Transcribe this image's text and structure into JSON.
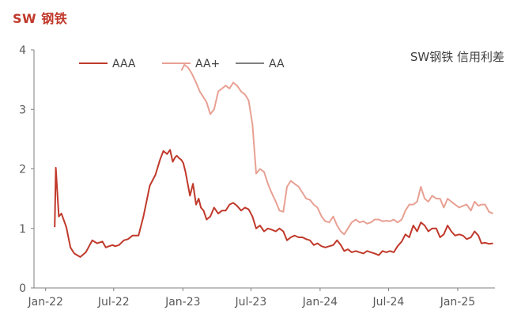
{
  "page": {
    "title": "SW 钢铁"
  },
  "chart_data": {
    "type": "line",
    "title": "SW 钢铁",
    "annotation": "SW钢铁 信用利差",
    "xlabel": "",
    "ylabel": "",
    "ylim": [
      0,
      4
    ],
    "yticks": [
      "0",
      "1",
      "2",
      "3",
      "4"
    ],
    "x_tick_labels": [
      "Jan-22",
      "Jul-22",
      "Jan-23",
      "Jul-23",
      "Jan-24",
      "Jul-24",
      "Jan-25"
    ],
    "x_tick_dates": [
      "2022-01-01",
      "2022-07-01",
      "2023-01-01",
      "2023-07-01",
      "2024-01-01",
      "2024-07-01",
      "2025-01-01"
    ],
    "x_range": [
      "2021-12-01",
      "2025-04-10"
    ],
    "grid": false,
    "legend_position": "top-left",
    "colors": {
      "AAA": "#c0392b",
      "AA+": "#e8a093",
      "AA": "#808080"
    },
    "series": [
      {
        "name": "AAA",
        "x": [
          "2022-01-25",
          "2022-01-28",
          "2022-02-05",
          "2022-02-12",
          "2022-02-25",
          "2022-03-08",
          "2022-03-18",
          "2022-04-03",
          "2022-04-18",
          "2022-05-05",
          "2022-05-18",
          "2022-06-01",
          "2022-06-10",
          "2022-06-18",
          "2022-06-28",
          "2022-07-05",
          "2022-07-15",
          "2022-07-28",
          "2022-08-08",
          "2022-08-20",
          "2022-09-05",
          "2022-09-18",
          "2022-10-05",
          "2022-10-20",
          "2022-11-01",
          "2022-11-10",
          "2022-11-20",
          "2022-11-28",
          "2022-12-05",
          "2022-12-12",
          "2022-12-16",
          "2022-12-22",
          "2022-12-28",
          "2023-01-02",
          "2023-01-08",
          "2023-01-20",
          "2023-01-28",
          "2023-02-05",
          "2023-02-12",
          "2023-02-18",
          "2023-02-25",
          "2023-03-05",
          "2023-03-15",
          "2023-03-25",
          "2023-04-05",
          "2023-04-15",
          "2023-04-25",
          "2023-05-05",
          "2023-05-15",
          "2023-05-25",
          "2023-06-05",
          "2023-06-15",
          "2023-06-25",
          "2023-07-05",
          "2023-07-15",
          "2023-07-25",
          "2023-08-05",
          "2023-08-15",
          "2023-08-25",
          "2023-09-05",
          "2023-09-15",
          "2023-09-25",
          "2023-10-05",
          "2023-10-15",
          "2023-10-25",
          "2023-11-05",
          "2023-11-15",
          "2023-11-25",
          "2023-12-05",
          "2023-12-15",
          "2023-12-25",
          "2024-01-05",
          "2024-01-15",
          "2024-01-25",
          "2024-02-05",
          "2024-02-15",
          "2024-02-25",
          "2024-03-05",
          "2024-03-15",
          "2024-03-25",
          "2024-04-05",
          "2024-04-15",
          "2024-04-25",
          "2024-05-05",
          "2024-05-15",
          "2024-05-25",
          "2024-06-05",
          "2024-06-15",
          "2024-06-25",
          "2024-07-05",
          "2024-07-15",
          "2024-07-25",
          "2024-08-05",
          "2024-08-15",
          "2024-08-25",
          "2024-09-05",
          "2024-09-15",
          "2024-09-25",
          "2024-10-05",
          "2024-10-15",
          "2024-10-25",
          "2024-11-05",
          "2024-11-15",
          "2024-11-25",
          "2024-12-05",
          "2024-12-15",
          "2024-12-25",
          "2025-01-05",
          "2025-01-15",
          "2025-01-25",
          "2025-02-05",
          "2025-02-15",
          "2025-02-25",
          "2025-03-05",
          "2025-03-15",
          "2025-03-25",
          "2025-04-05"
        ],
        "values": [
          1.02,
          2.02,
          1.2,
          1.25,
          1.02,
          0.68,
          0.58,
          0.52,
          0.6,
          0.8,
          0.75,
          0.78,
          0.68,
          0.7,
          0.72,
          0.7,
          0.72,
          0.8,
          0.82,
          0.88,
          0.88,
          1.2,
          1.72,
          1.9,
          2.15,
          2.3,
          2.25,
          2.32,
          2.12,
          2.2,
          2.22,
          2.18,
          2.15,
          2.1,
          1.95,
          1.55,
          1.75,
          1.4,
          1.5,
          1.35,
          1.3,
          1.15,
          1.2,
          1.35,
          1.25,
          1.3,
          1.3,
          1.4,
          1.43,
          1.38,
          1.3,
          1.35,
          1.32,
          1.2,
          1.0,
          1.05,
          0.95,
          1.0,
          0.98,
          0.95,
          1.0,
          0.95,
          0.8,
          0.85,
          0.88,
          0.85,
          0.85,
          0.82,
          0.8,
          0.72,
          0.75,
          0.7,
          0.68,
          0.7,
          0.72,
          0.8,
          0.72,
          0.62,
          0.65,
          0.6,
          0.62,
          0.6,
          0.58,
          0.62,
          0.6,
          0.58,
          0.55,
          0.62,
          0.6,
          0.62,
          0.6,
          0.7,
          0.78,
          0.9,
          0.85,
          1.05,
          0.95,
          1.1,
          1.05,
          0.95,
          1.0,
          1.0,
          0.85,
          0.9,
          1.05,
          0.95,
          0.88,
          0.9,
          0.88,
          0.82,
          0.85,
          0.95,
          0.88,
          0.75,
          0.76,
          0.74,
          0.75
        ]
      },
      {
        "name": "AA+",
        "x": [
          "2022-12-28",
          "2023-01-05",
          "2023-01-15",
          "2023-01-25",
          "2023-02-05",
          "2023-02-15",
          "2023-02-25",
          "2023-03-05",
          "2023-03-15",
          "2023-03-25",
          "2023-04-05",
          "2023-04-15",
          "2023-04-25",
          "2023-05-05",
          "2023-05-15",
          "2023-05-25",
          "2023-06-05",
          "2023-06-15",
          "2023-06-25",
          "2023-07-05",
          "2023-07-15",
          "2023-07-25",
          "2023-08-05",
          "2023-08-15",
          "2023-08-25",
          "2023-09-05",
          "2023-09-15",
          "2023-09-25",
          "2023-10-05",
          "2023-10-15",
          "2023-10-25",
          "2023-11-05",
          "2023-11-15",
          "2023-11-25",
          "2023-12-05",
          "2023-12-15",
          "2023-12-25",
          "2024-01-05",
          "2024-01-15",
          "2024-01-25",
          "2024-02-05",
          "2024-02-15",
          "2024-02-25",
          "2024-03-05",
          "2024-03-15",
          "2024-03-25",
          "2024-04-05",
          "2024-04-15",
          "2024-04-25",
          "2024-05-05",
          "2024-05-15",
          "2024-05-25",
          "2024-06-05",
          "2024-06-15",
          "2024-06-25",
          "2024-07-05",
          "2024-07-15",
          "2024-07-25",
          "2024-08-05",
          "2024-08-15",
          "2024-08-25",
          "2024-09-05",
          "2024-09-15",
          "2024-09-25",
          "2024-10-05",
          "2024-10-15",
          "2024-10-25",
          "2024-11-05",
          "2024-11-15",
          "2024-11-25",
          "2024-12-05",
          "2024-12-15",
          "2024-12-25",
          "2025-01-05",
          "2025-01-15",
          "2025-01-25",
          "2025-02-05",
          "2025-02-15",
          "2025-02-25",
          "2025-03-05",
          "2025-03-15",
          "2025-03-25",
          "2025-04-05"
        ],
        "values": [
          3.65,
          3.75,
          3.7,
          3.6,
          3.45,
          3.3,
          3.2,
          3.12,
          2.92,
          3.0,
          3.3,
          3.35,
          3.4,
          3.35,
          3.45,
          3.4,
          3.3,
          3.25,
          3.15,
          2.75,
          1.92,
          2.0,
          1.95,
          1.75,
          1.6,
          1.45,
          1.3,
          1.28,
          1.7,
          1.8,
          1.75,
          1.7,
          1.6,
          1.5,
          1.48,
          1.4,
          1.35,
          1.2,
          1.12,
          1.1,
          1.2,
          1.05,
          0.95,
          0.9,
          1.0,
          1.1,
          1.15,
          1.1,
          1.12,
          1.08,
          1.1,
          1.15,
          1.15,
          1.12,
          1.13,
          1.12,
          1.15,
          1.1,
          1.15,
          1.3,
          1.4,
          1.4,
          1.45,
          1.7,
          1.5,
          1.45,
          1.55,
          1.5,
          1.5,
          1.35,
          1.5,
          1.45,
          1.4,
          1.35,
          1.38,
          1.4,
          1.3,
          1.45,
          1.38,
          1.4,
          1.4,
          1.28,
          1.25
        ]
      },
      {
        "name": "AA",
        "x": [],
        "values": []
      }
    ]
  }
}
